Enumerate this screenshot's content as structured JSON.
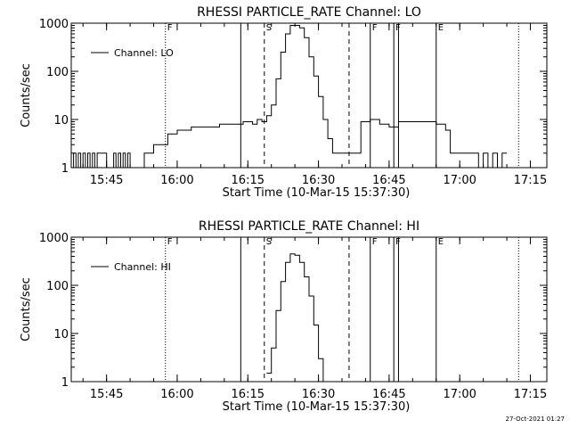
{
  "footer_timestamp": "27-Oct-2021 01:27",
  "chart_data": [
    {
      "type": "line",
      "title": "RHESSI PARTICLE_RATE Channel: LO",
      "xlabel": "Start Time (10-Mar-15 15:37:30)",
      "ylabel": "Counts/sec",
      "y_scale": "log",
      "ylim": [
        1,
        1000
      ],
      "y_ticks": [
        1,
        10,
        100,
        1000
      ],
      "y_tick_labels": [
        "1",
        "10",
        "100",
        "1000"
      ],
      "xlim": [
        "15:37:30",
        "17:18:30"
      ],
      "x_ticks": [
        "15:45",
        "16:00",
        "16:15",
        "16:30",
        "16:45",
        "17:00",
        "17:15"
      ],
      "legend": {
        "label": "Channel: LO",
        "position": "top-left"
      },
      "markers": [
        {
          "time": "15:57:30",
          "label": "F",
          "style": "dotted"
        },
        {
          "time": "16:13:30",
          "label": "",
          "style": "solid"
        },
        {
          "time": "16:18:30",
          "label": "S",
          "style": "dashed"
        },
        {
          "time": "16:36:30",
          "label": "",
          "style": "dashed"
        },
        {
          "time": "16:41:00",
          "label": "F",
          "style": "solid"
        },
        {
          "time": "16:46:00",
          "label": "F",
          "style": "solid"
        },
        {
          "time": "16:47:00",
          "label": "",
          "style": "solid"
        },
        {
          "time": "16:55:00",
          "label": "E",
          "style": "solid"
        },
        {
          "time": "17:12:30",
          "label": "",
          "style": "dotted"
        }
      ],
      "series": [
        {
          "name": "Channel: LO",
          "points": [
            [
              "15:37:30",
              1
            ],
            [
              "15:38:00",
              2
            ],
            [
              "15:38:30",
              1
            ],
            [
              "15:39:00",
              2
            ],
            [
              "15:39:30",
              1
            ],
            [
              "15:40:00",
              2
            ],
            [
              "15:40:30",
              1
            ],
            [
              "15:41:00",
              2
            ],
            [
              "15:41:30",
              1
            ],
            [
              "15:42:00",
              2
            ],
            [
              "15:42:30",
              1
            ],
            [
              "15:43:00",
              2
            ],
            [
              "15:44:00",
              2
            ],
            [
              "15:45:00",
              1
            ],
            [
              "15:46:00",
              1
            ],
            [
              "15:46:30",
              2
            ],
            [
              "15:47:00",
              1
            ],
            [
              "15:47:30",
              2
            ],
            [
              "15:48:00",
              1
            ],
            [
              "15:48:30",
              2
            ],
            [
              "15:49:00",
              1
            ],
            [
              "15:49:30",
              2
            ],
            [
              "15:50:00",
              1
            ],
            [
              "15:51:00",
              1
            ],
            [
              "15:52:00",
              1
            ],
            [
              "15:53:00",
              2
            ],
            [
              "15:55:00",
              3
            ],
            [
              "15:57:30",
              3
            ],
            [
              "15:58:00",
              5
            ],
            [
              "16:00:00",
              6
            ],
            [
              "16:03:00",
              7
            ],
            [
              "16:06:00",
              7
            ],
            [
              "16:09:00",
              8
            ],
            [
              "16:12:00",
              8
            ],
            [
              "16:14:00",
              9
            ],
            [
              "16:16:00",
              8
            ],
            [
              "16:17:00",
              10
            ],
            [
              "16:18:00",
              9
            ],
            [
              "16:19:00",
              12
            ],
            [
              "16:20:00",
              20
            ],
            [
              "16:21:00",
              70
            ],
            [
              "16:22:00",
              250
            ],
            [
              "16:23:00",
              600
            ],
            [
              "16:24:00",
              900
            ],
            [
              "16:25:00",
              900
            ],
            [
              "16:26:00",
              800
            ],
            [
              "16:27:00",
              500
            ],
            [
              "16:28:00",
              200
            ],
            [
              "16:29:00",
              80
            ],
            [
              "16:30:00",
              30
            ],
            [
              "16:31:00",
              10
            ],
            [
              "16:32:00",
              4
            ],
            [
              "16:33:00",
              2
            ],
            [
              "16:35:00",
              2
            ],
            [
              "16:36:30",
              2
            ],
            [
              "16:38:00",
              2
            ],
            [
              "16:39:00",
              9
            ],
            [
              "16:41:00",
              10
            ],
            [
              "16:43:00",
              8
            ],
            [
              "16:45:00",
              7
            ],
            [
              "16:47:00",
              9
            ],
            [
              "16:50:00",
              9
            ],
            [
              "16:53:00",
              9
            ],
            [
              "16:55:00",
              8
            ],
            [
              "16:57:00",
              6
            ],
            [
              "16:58:00",
              2
            ],
            [
              "17:00:00",
              2
            ],
            [
              "17:03:00",
              2
            ],
            [
              "17:04:00",
              1
            ],
            [
              "17:05:00",
              2
            ],
            [
              "17:06:00",
              1
            ],
            [
              "17:07:00",
              2
            ],
            [
              "17:08:00",
              1
            ],
            [
              "17:09:00",
              2
            ],
            [
              "17:10:00",
              2
            ]
          ]
        }
      ]
    },
    {
      "type": "line",
      "title": "RHESSI PARTICLE_RATE Channel: HI",
      "xlabel": "Start Time (10-Mar-15 15:37:30)",
      "ylabel": "Counts/sec",
      "y_scale": "log",
      "ylim": [
        1,
        1000
      ],
      "y_ticks": [
        1,
        10,
        100,
        1000
      ],
      "y_tick_labels": [
        "1",
        "10",
        "100",
        "1000"
      ],
      "xlim": [
        "15:37:30",
        "17:18:30"
      ],
      "x_ticks": [
        "15:45",
        "16:00",
        "16:15",
        "16:30",
        "16:45",
        "17:00",
        "17:15"
      ],
      "legend": {
        "label": "Channel: HI",
        "position": "top-left"
      },
      "markers": [
        {
          "time": "15:57:30",
          "label": "F",
          "style": "dotted"
        },
        {
          "time": "16:13:30",
          "label": "",
          "style": "solid"
        },
        {
          "time": "16:18:30",
          "label": "S",
          "style": "dashed"
        },
        {
          "time": "16:36:30",
          "label": "",
          "style": "dashed"
        },
        {
          "time": "16:41:00",
          "label": "F",
          "style": "solid"
        },
        {
          "time": "16:46:00",
          "label": "F",
          "style": "solid"
        },
        {
          "time": "16:47:00",
          "label": "",
          "style": "solid"
        },
        {
          "time": "16:55:00",
          "label": "E",
          "style": "solid"
        },
        {
          "time": "17:12:30",
          "label": "",
          "style": "dotted"
        }
      ],
      "series": [
        {
          "name": "Channel: HI",
          "points": [
            [
              "16:19:00",
              1.5
            ],
            [
              "16:20:00",
              5
            ],
            [
              "16:21:00",
              30
            ],
            [
              "16:22:00",
              120
            ],
            [
              "16:23:00",
              300
            ],
            [
              "16:24:00",
              450
            ],
            [
              "16:25:00",
              420
            ],
            [
              "16:26:00",
              300
            ],
            [
              "16:27:00",
              150
            ],
            [
              "16:28:00",
              60
            ],
            [
              "16:29:00",
              15
            ],
            [
              "16:30:00",
              3
            ],
            [
              "16:31:00",
              1
            ]
          ]
        }
      ]
    }
  ]
}
